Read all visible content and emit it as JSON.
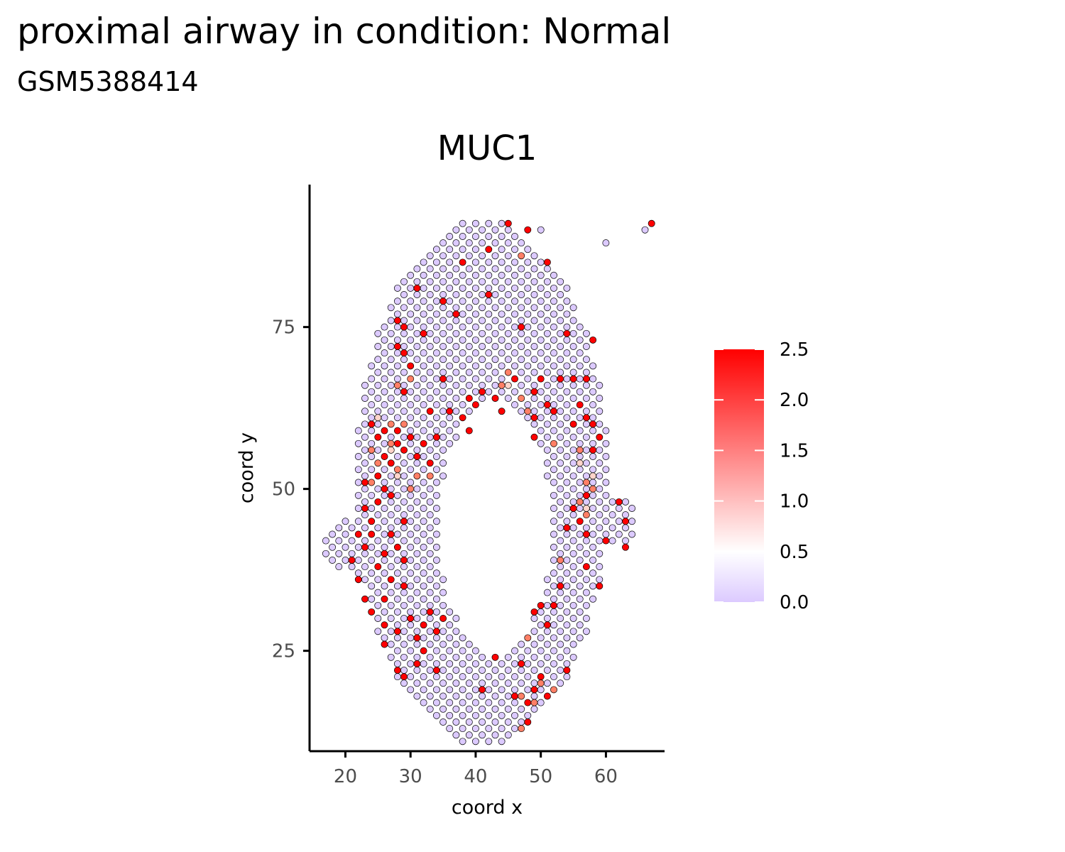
{
  "page": {
    "title": "proximal airway in condition: Normal",
    "subtitle": "GSM5388414"
  },
  "colors": {
    "low": "#DCCAFF",
    "mid": "#FFFFFF",
    "high": "#FF0000",
    "axis": "#000000",
    "tick_text": "#4D4D4D",
    "point_outline": "#000000"
  },
  "chart_data": {
    "type": "scatter",
    "title": "MUC1",
    "xlabel": "coord x",
    "ylabel": "coord y",
    "xlim": [
      14.5,
      69
    ],
    "ylim": [
      9.5,
      97
    ],
    "xticks": [
      20,
      30,
      40,
      50,
      60
    ],
    "yticks": [
      25,
      50,
      75
    ],
    "grid": false,
    "legend": {
      "position": "right",
      "min": 0,
      "max": 2.5,
      "ticks": [
        "0.0",
        "0.5",
        "1.0",
        "1.5",
        "2.0",
        "2.5"
      ],
      "midpoint": 0.5
    },
    "spots": {
      "row_spacing": 1,
      "col_spacing": 1,
      "y_range": [
        11,
        91
      ],
      "x_range": [
        17,
        67
      ]
    },
    "high_spots": [
      [
        45,
        91
      ],
      [
        48,
        90
      ],
      [
        67,
        91
      ],
      [
        42,
        87
      ],
      [
        38,
        85
      ],
      [
        51,
        85
      ],
      [
        31,
        81
      ],
      [
        35,
        79
      ],
      [
        42,
        80
      ],
      [
        37,
        77
      ],
      [
        32,
        74
      ],
      [
        47,
        75
      ],
      [
        54,
        74
      ],
      [
        28,
        76
      ],
      [
        29,
        75
      ],
      [
        58,
        73
      ],
      [
        28,
        72
      ],
      [
        29,
        71
      ],
      [
        30,
        69
      ],
      [
        35,
        67
      ],
      [
        46,
        67
      ],
      [
        50,
        67
      ],
      [
        53,
        67
      ],
      [
        55,
        67
      ],
      [
        57,
        67
      ],
      [
        49,
        65
      ],
      [
        29,
        65
      ],
      [
        39,
        64
      ],
      [
        40,
        63
      ],
      [
        41,
        65
      ],
      [
        43,
        64
      ],
      [
        44,
        62
      ],
      [
        36,
        62
      ],
      [
        38,
        61
      ],
      [
        39,
        59
      ],
      [
        33,
        62
      ],
      [
        49,
        61
      ],
      [
        51,
        63
      ],
      [
        52,
        62
      ],
      [
        56,
        63
      ],
      [
        57,
        61
      ],
      [
        58,
        60
      ],
      [
        49,
        58
      ],
      [
        24,
        60
      ],
      [
        25,
        58
      ],
      [
        26,
        59
      ],
      [
        28,
        57
      ],
      [
        28,
        59
      ],
      [
        29,
        56
      ],
      [
        30,
        58
      ],
      [
        31,
        55
      ],
      [
        32,
        57
      ],
      [
        33,
        54
      ],
      [
        34,
        58
      ],
      [
        26,
        55
      ],
      [
        27,
        54
      ],
      [
        25,
        52
      ],
      [
        23,
        51
      ],
      [
        26,
        50
      ],
      [
        27,
        49
      ],
      [
        25,
        48
      ],
      [
        23,
        47
      ],
      [
        24,
        45
      ],
      [
        22,
        43
      ],
      [
        24,
        43
      ],
      [
        27,
        43
      ],
      [
        29,
        45
      ],
      [
        23,
        41
      ],
      [
        26,
        40
      ],
      [
        28,
        41
      ],
      [
        29,
        39
      ],
      [
        21,
        39
      ],
      [
        25,
        38
      ],
      [
        27,
        36
      ],
      [
        29,
        35
      ],
      [
        22,
        36
      ],
      [
        23,
        33
      ],
      [
        26,
        33
      ],
      [
        24,
        31
      ],
      [
        26,
        29
      ],
      [
        26,
        26
      ],
      [
        28,
        28
      ],
      [
        30,
        30
      ],
      [
        31,
        27
      ],
      [
        32,
        25
      ],
      [
        32,
        29
      ],
      [
        33,
        31
      ],
      [
        34,
        28
      ],
      [
        35,
        30
      ],
      [
        29,
        21
      ],
      [
        28,
        22
      ],
      [
        31,
        23
      ],
      [
        34,
        22
      ],
      [
        41,
        19
      ],
      [
        43,
        24
      ],
      [
        47,
        23
      ],
      [
        46,
        18
      ],
      [
        48,
        17
      ],
      [
        49,
        19
      ],
      [
        50,
        21
      ],
      [
        51,
        18
      ],
      [
        54,
        22
      ],
      [
        48,
        14
      ],
      [
        50,
        32
      ],
      [
        49,
        31
      ],
      [
        51,
        29
      ],
      [
        52,
        32
      ],
      [
        53,
        35
      ],
      [
        59,
        35
      ],
      [
        57,
        38
      ],
      [
        60,
        42
      ],
      [
        63,
        41
      ],
      [
        62,
        48
      ],
      [
        63,
        45
      ],
      [
        55,
        47
      ],
      [
        54,
        44
      ],
      [
        56,
        45
      ],
      [
        57,
        43
      ],
      [
        57,
        49
      ],
      [
        58,
        56
      ],
      [
        59,
        58
      ],
      [
        55,
        60
      ]
    ],
    "mid_spots": [
      [
        47,
        86
      ],
      [
        29,
        75
      ],
      [
        24,
        56
      ],
      [
        25,
        54
      ],
      [
        27,
        60
      ],
      [
        24,
        51
      ],
      [
        28,
        53
      ],
      [
        30,
        50
      ],
      [
        29,
        60
      ],
      [
        31,
        52
      ],
      [
        33,
        52
      ],
      [
        30,
        67
      ],
      [
        45,
        68
      ],
      [
        44,
        66
      ],
      [
        47,
        64
      ],
      [
        48,
        62
      ],
      [
        52,
        57
      ],
      [
        56,
        56
      ],
      [
        57,
        51
      ],
      [
        58,
        50
      ],
      [
        56,
        48
      ],
      [
        57,
        46
      ],
      [
        53,
        39
      ],
      [
        48,
        27
      ],
      [
        47,
        18
      ],
      [
        49,
        17
      ],
      [
        52,
        19
      ],
      [
        50,
        20
      ],
      [
        47,
        13
      ],
      [
        28,
        66
      ],
      [
        27,
        57
      ]
    ],
    "pale_spots": [
      [
        25,
        61
      ],
      [
        28,
        52
      ],
      [
        27,
        56
      ],
      [
        45,
        66
      ],
      [
        56,
        54
      ],
      [
        58,
        52
      ],
      [
        48,
        62
      ],
      [
        57,
        47
      ]
    ]
  }
}
